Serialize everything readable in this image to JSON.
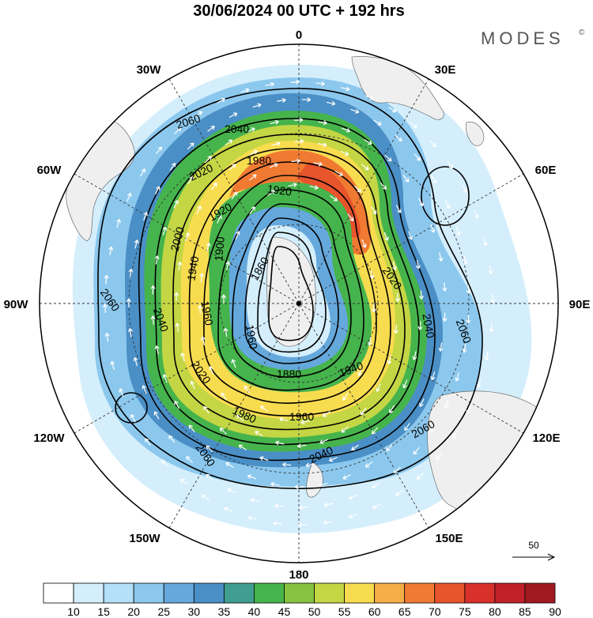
{
  "title": "30/06/2024  00 UTC  + 192 hrs",
  "brand": "MODES",
  "brand_mark": "©",
  "longitude_labels": [
    "0",
    "30E",
    "60E",
    "90E",
    "120E",
    "150E",
    "180",
    "150W",
    "120W",
    "90W",
    "60W",
    "30W"
  ],
  "contour_labels": {
    "c1860": "1860",
    "c1880": "1880",
    "c1900": "1900",
    "c1920": "1920",
    "c1940": "1940",
    "c1960": "1960",
    "c1980": "1980",
    "c2000": "2000",
    "c2020": "2020",
    "c2040": "2040",
    "c2060": "2060"
  },
  "reference_vector_label": "50",
  "colorbar": {
    "ticks": [
      "10",
      "15",
      "20",
      "25",
      "30",
      "35",
      "40",
      "45",
      "50",
      "55",
      "60",
      "65",
      "70",
      "75",
      "80",
      "85",
      "90"
    ],
    "colors": [
      "#ffffff",
      "#d4eefc",
      "#b4e0f8",
      "#8cc8ee",
      "#65a8dc",
      "#4a8fc6",
      "#3f9e90",
      "#46b44c",
      "#86c440",
      "#c4d644",
      "#f8dc50",
      "#f6ae48",
      "#f07a32",
      "#e8542c",
      "#d8302a",
      "#c0202a",
      "#9e1a20"
    ]
  },
  "map": {
    "projection": "south polar stereographic",
    "land_color": "#efefef",
    "contour_color": "#000000",
    "vector_color": "#ffffff"
  }
}
